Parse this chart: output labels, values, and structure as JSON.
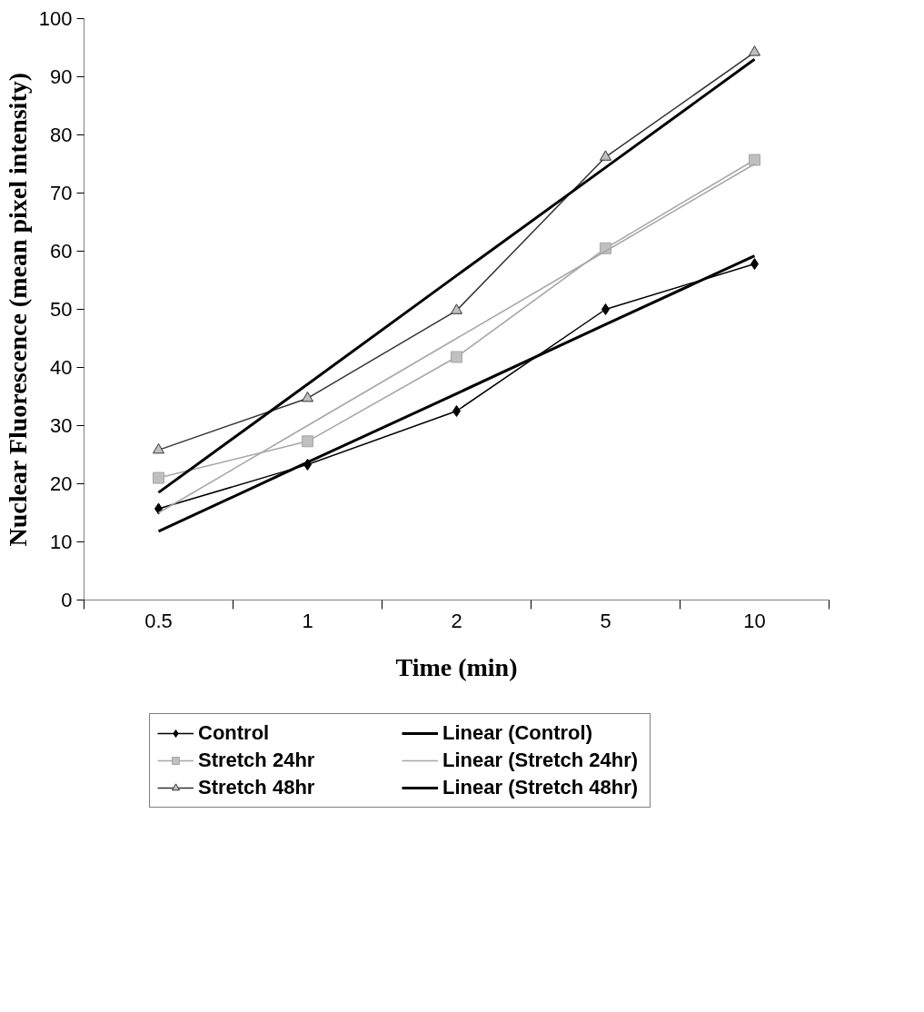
{
  "chart_data": {
    "type": "line",
    "xlabel": "Time (min)",
    "ylabel": "Nuclear Fluorescence (mean pixel intensity)",
    "categories": [
      "0.5",
      "1",
      "2",
      "5",
      "10"
    ],
    "ylim": [
      0,
      100
    ],
    "yticks": [
      0,
      10,
      20,
      30,
      40,
      50,
      60,
      70,
      80,
      90,
      100
    ],
    "grid": false,
    "legend": "bottom",
    "series": [
      {
        "name": "Control",
        "color": "#000000",
        "marker": "diamond",
        "values": [
          15.7,
          23.3,
          32.5,
          50,
          57.8
        ]
      },
      {
        "name": "Stretch 24hr",
        "color": "#a6a6a6",
        "marker": "square",
        "values": [
          21,
          27.3,
          41.8,
          60.5,
          75.7
        ]
      },
      {
        "name": "Stretch 48hr",
        "color": "#333333",
        "marker": "triangle",
        "values": [
          25.8,
          34.7,
          49.8,
          76.2,
          94.2
        ]
      },
      {
        "name": "Linear (Control)",
        "color": "#000000",
        "marker": "none",
        "values": [
          11.8,
          23.7,
          35.5,
          47.4,
          59.2
        ]
      },
      {
        "name": "Linear (Stretch 24hr)",
        "color": "#a6a6a6",
        "marker": "none",
        "values": [
          15,
          30,
          45,
          60,
          75
        ]
      },
      {
        "name": "Linear (Stretch 48hr)",
        "color": "#000000",
        "marker": "none",
        "values": [
          18.5,
          37.1,
          55.8,
          74.4,
          93
        ]
      }
    ]
  }
}
